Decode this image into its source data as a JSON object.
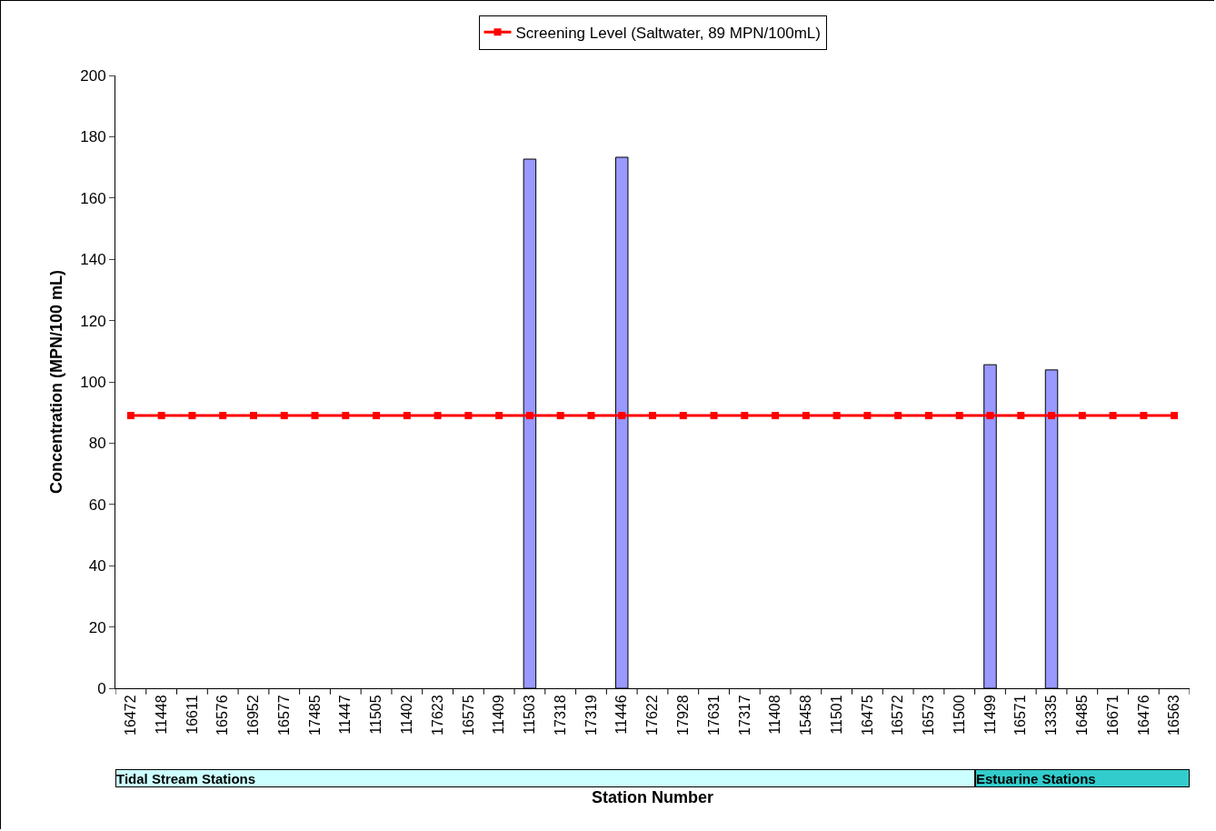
{
  "chart_data": {
    "type": "bar",
    "xlabel": "Station Number",
    "ylabel": "Concentration (MPN/100 mL)",
    "categories": [
      "16472",
      "11448",
      "16611",
      "16576",
      "16952",
      "16577",
      "17485",
      "11447",
      "11505",
      "11402",
      "17623",
      "16575",
      "11409",
      "11503",
      "17318",
      "17319",
      "11446",
      "17622",
      "17928",
      "17631",
      "17317",
      "11408",
      "15458",
      "11501",
      "16475",
      "16572",
      "16573",
      "11500",
      "11499",
      "16571",
      "13335",
      "16485",
      "16671",
      "16476",
      "16563"
    ],
    "series": [
      {
        "color": "#9999ff",
        "values": [
          null,
          null,
          null,
          null,
          null,
          null,
          null,
          null,
          null,
          null,
          null,
          null,
          null,
          172.7,
          null,
          null,
          173.3,
          null,
          null,
          null,
          null,
          null,
          null,
          null,
          null,
          null,
          null,
          null,
          105.6,
          null,
          103.9,
          null,
          null,
          null,
          null
        ]
      },
      {
        "type": "line",
        "name": "Screening Level (Saltwater, 89 MPN/100mL)",
        "color": "#ff0000",
        "values": [
          89,
          89,
          89,
          89,
          89,
          89,
          89,
          89,
          89,
          89,
          89,
          89,
          89,
          89,
          89,
          89,
          89,
          89,
          89,
          89,
          89,
          89,
          89,
          89,
          89,
          89,
          89,
          89,
          89,
          89,
          89,
          89,
          89,
          89,
          89
        ]
      }
    ],
    "annotations": [
      "Tidal Stream Stations",
      "Estuarine Stations"
    ],
    "ylim": [
      0,
      200
    ],
    "yticks": [
      0,
      20,
      40,
      60,
      80,
      100,
      120,
      140,
      160,
      180,
      200
    ],
    "grid": false,
    "legend": "top",
    "marker": "square",
    "line_style": "solid"
  }
}
